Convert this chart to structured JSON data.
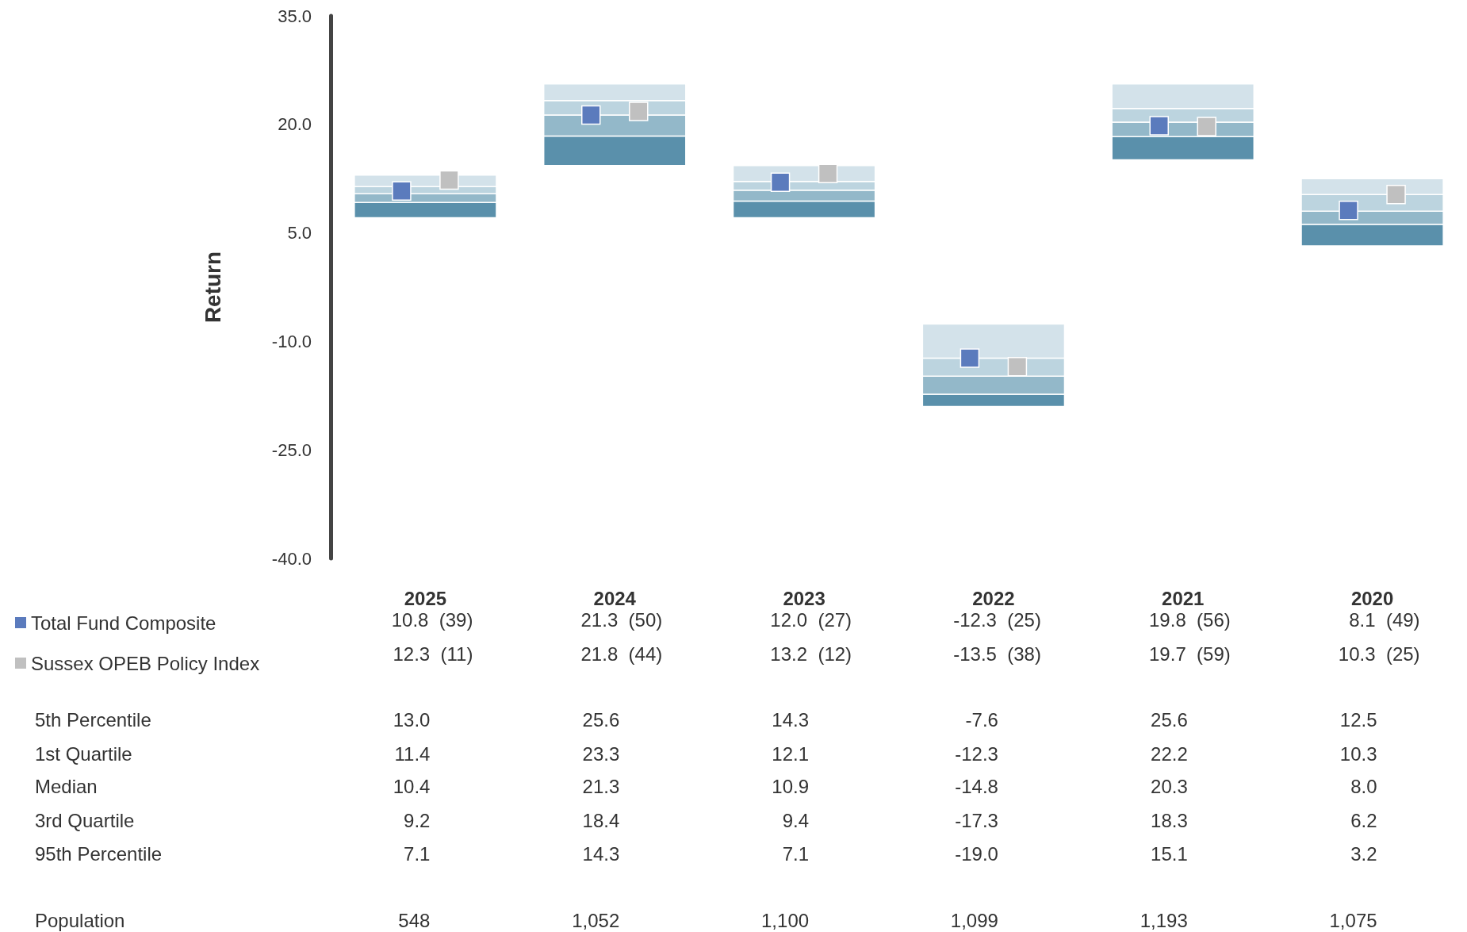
{
  "chart_data": {
    "type": "bar",
    "categories": [
      "2025",
      "2024",
      "2023",
      "2022",
      "2021",
      "2020"
    ],
    "ylabel": "Return",
    "ylim": [
      -40,
      35
    ],
    "yticks": [
      {
        "value": -40,
        "label": "-40.0"
      },
      {
        "value": -25,
        "label": "-25.0"
      },
      {
        "value": -10,
        "label": "-10.0"
      },
      {
        "value": 5,
        "label": "5.0"
      },
      {
        "value": 20,
        "label": "20.0"
      },
      {
        "value": 35,
        "label": "35.0"
      }
    ],
    "grid": false,
    "legend": "bottom left",
    "marker": "square",
    "series": [
      {
        "color": "#5a90ab",
        "base": [
          7.1,
          14.3,
          7.1,
          -19.0,
          15.1,
          3.2
        ],
        "values": [
          2.1,
          4.1,
          2.3,
          1.7,
          3.2,
          3.0
        ]
      },
      {
        "color": "#93b8c9",
        "base": [
          9.2,
          18.4,
          9.4,
          -17.3,
          18.3,
          6.2
        ],
        "values": [
          1.2,
          2.9,
          1.5,
          2.5,
          2.0,
          1.8
        ]
      },
      {
        "color": "#bcd4df",
        "base": [
          10.4,
          21.3,
          10.9,
          -14.8,
          20.3,
          8.0
        ],
        "values": [
          1.0,
          2.0,
          1.2,
          2.5,
          1.9,
          2.3
        ]
      },
      {
        "color": "#d3e2ea",
        "base": [
          11.4,
          23.3,
          12.1,
          -12.3,
          22.2,
          10.3
        ],
        "values": [
          1.6,
          2.3,
          2.2,
          4.7,
          3.4,
          2.2
        ]
      },
      {
        "type": "scatter",
        "name": "Total Fund Composite",
        "color": "#5b7bbd",
        "values": [
          10.8,
          21.3,
          12.0,
          -12.3,
          19.8,
          8.1
        ],
        "value_labels": [
          "10.8  (39)",
          "21.3  (50)",
          "12.0  (27)",
          "-12.3  (25)",
          "19.8  (56)",
          "8.1  (49)"
        ]
      },
      {
        "type": "scatter",
        "name": "Sussex OPEB Policy Index",
        "color": "#c0c0c0",
        "values": [
          12.3,
          21.8,
          13.2,
          -13.5,
          19.7,
          10.3
        ],
        "value_labels": [
          "12.3  (11)",
          "21.8  (44)",
          "13.2  (12)",
          "-13.5  (38)",
          "19.7  (59)",
          "10.3  (25)"
        ]
      }
    ],
    "annotations": [
      "5th Percentile",
      "1st Quartile",
      "Median",
      "3rd Quartile",
      "95th Percentile",
      "Population",
      "548",
      "1,052",
      "1,100",
      "1,099",
      "1,193",
      "1,075",
      "13.0",
      "25.6",
      "14.3",
      "-7.6",
      "25.6",
      "12.5",
      "11.4",
      "23.3",
      "12.1",
      "-12.3",
      "22.2",
      "10.3",
      "10.4",
      "21.3",
      "10.9",
      "-14.8",
      "20.3",
      "8.0",
      "9.2",
      "18.4",
      "9.4",
      "-17.3",
      "18.3",
      "6.2",
      "7.1",
      "14.3",
      "7.1",
      "-19.0",
      "15.1",
      "3.2"
    ]
  }
}
